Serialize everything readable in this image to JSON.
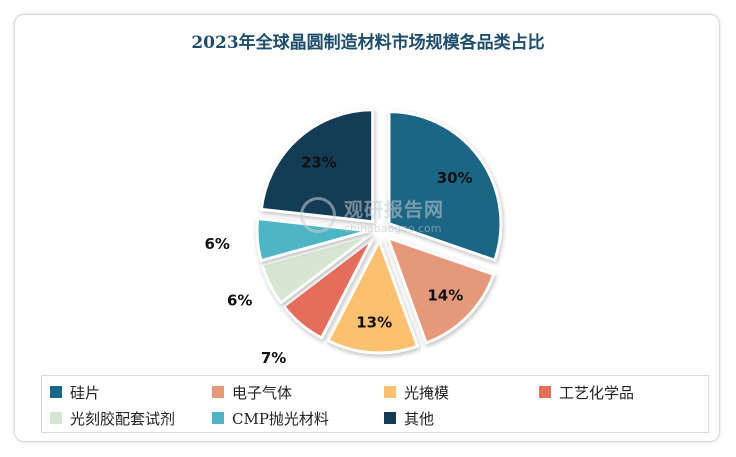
{
  "chart_data": {
    "type": "pie",
    "title": "2023年全球晶圆制造材料市场规模各品类占比",
    "slices": [
      {
        "label": "硅片",
        "value": 30,
        "display": "30%",
        "color": "#1b6585"
      },
      {
        "label": "电子气体",
        "value": 14,
        "display": "14%",
        "color": "#e5987a"
      },
      {
        "label": "光掩模",
        "value": 13,
        "display": "13%",
        "color": "#fbc171"
      },
      {
        "label": "工艺化学品",
        "value": 7,
        "display": "7%",
        "color": "#e56d5c"
      },
      {
        "label": "光刻胶配套试剂",
        "value": 6,
        "display": "6%",
        "color": "#d7e5d3"
      },
      {
        "label": "CMP抛光材料",
        "value": 6,
        "display": "6%",
        "color": "#4db5c3"
      },
      {
        "label": "其他",
        "value": 23,
        "display": "23%",
        "color": "#143d55"
      }
    ],
    "legend_position": "bottom"
  },
  "watermark": {
    "cn": "观研报告网",
    "en": "chinabaogao.com"
  }
}
